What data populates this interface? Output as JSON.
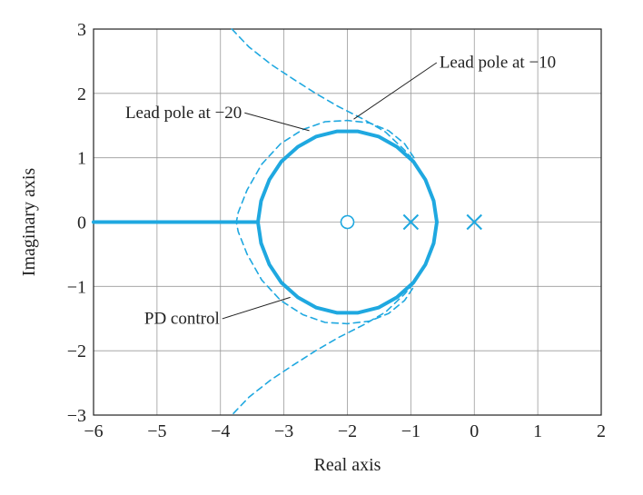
{
  "chart_data": {
    "type": "line",
    "title": "",
    "xlabel": "Real axis",
    "ylabel": "Imaginary axis",
    "xlim": [
      -6,
      2
    ],
    "ylim": [
      -3,
      3
    ],
    "xticks": [
      -6,
      -5,
      -4,
      -3,
      -2,
      -1,
      0,
      1,
      2
    ],
    "yticks": [
      -3,
      -2,
      -1,
      0,
      1,
      2,
      3
    ],
    "xtick_labels": [
      "−6",
      "−5",
      "−4",
      "−3",
      "−2",
      "−1",
      "0",
      "1",
      "2"
    ],
    "ytick_labels": [
      "−3",
      "−2",
      "−1",
      "0",
      "1",
      "2",
      "3"
    ],
    "grid": true,
    "color": "#1fa8e0",
    "series": [
      {
        "name": "PD control",
        "style": "solid",
        "paths": [
          [
            [
              -6,
              0
            ],
            [
              -3.41,
              0
            ]
          ],
          [
            [
              -0.59,
              0
            ],
            [
              -0.64,
              0.33
            ],
            [
              -0.77,
              0.66
            ],
            [
              -0.96,
              0.94
            ],
            [
              -1.22,
              1.17
            ],
            [
              -1.51,
              1.33
            ],
            [
              -1.84,
              1.41
            ],
            [
              -2.16,
              1.41
            ],
            [
              -2.49,
              1.33
            ],
            [
              -2.78,
              1.17
            ],
            [
              -3.04,
              0.94
            ],
            [
              -3.23,
              0.66
            ],
            [
              -3.36,
              0.33
            ],
            [
              -3.41,
              0
            ],
            [
              -3.36,
              -0.33
            ],
            [
              -3.23,
              -0.66
            ],
            [
              -3.04,
              -0.94
            ],
            [
              -2.78,
              -1.17
            ],
            [
              -2.49,
              -1.33
            ],
            [
              -2.16,
              -1.41
            ],
            [
              -1.84,
              -1.41
            ],
            [
              -1.51,
              -1.33
            ],
            [
              -1.22,
              -1.17
            ],
            [
              -0.96,
              -0.94
            ],
            [
              -0.77,
              -0.66
            ],
            [
              -0.64,
              -0.33
            ],
            [
              -0.59,
              0
            ]
          ]
        ]
      },
      {
        "name": "Lead pole at −20",
        "style": "dashed",
        "paths": [
          [
            [
              -0.95,
              1.0
            ],
            [
              -1.1,
              1.22
            ],
            [
              -1.35,
              1.42
            ],
            [
              -1.65,
              1.54
            ],
            [
              -2.0,
              1.58
            ],
            [
              -2.35,
              1.56
            ],
            [
              -2.7,
              1.44
            ],
            [
              -3.05,
              1.22
            ],
            [
              -3.35,
              0.9
            ],
            [
              -3.58,
              0.5
            ],
            [
              -3.72,
              0.15
            ],
            [
              -3.75,
              0
            ],
            [
              -3.72,
              -0.15
            ],
            [
              -3.58,
              -0.5
            ],
            [
              -3.35,
              -0.9
            ],
            [
              -3.05,
              -1.22
            ],
            [
              -2.7,
              -1.44
            ],
            [
              -2.35,
              -1.56
            ],
            [
              -2.0,
              -1.58
            ],
            [
              -1.65,
              -1.54
            ],
            [
              -1.35,
              -1.42
            ],
            [
              -1.1,
              -1.22
            ],
            [
              -0.95,
              -1.0
            ]
          ]
        ]
      },
      {
        "name": "Lead pole at −10",
        "style": "dashed",
        "paths": [
          [
            [
              -3.82,
              3.0
            ],
            [
              -3.55,
              2.72
            ],
            [
              -3.2,
              2.45
            ],
            [
              -2.85,
              2.22
            ],
            [
              -2.5,
              2.0
            ],
            [
              -2.15,
              1.8
            ],
            [
              -1.75,
              1.6
            ],
            [
              -1.4,
              1.4
            ],
            [
              -1.1,
              1.12
            ],
            [
              -0.95,
              0.95
            ]
          ],
          [
            [
              -0.95,
              -0.95
            ],
            [
              -1.1,
              -1.12
            ],
            [
              -1.4,
              -1.4
            ],
            [
              -1.75,
              -1.6
            ],
            [
              -2.15,
              -1.8
            ],
            [
              -2.5,
              -2.0
            ],
            [
              -2.85,
              -2.22
            ],
            [
              -3.2,
              -2.45
            ],
            [
              -3.55,
              -2.72
            ],
            [
              -3.82,
              -3.0
            ]
          ]
        ]
      }
    ],
    "poles": [
      [
        -1,
        0
      ],
      [
        0,
        0
      ]
    ],
    "zeros": [
      [
        -2,
        0
      ]
    ],
    "annotations": [
      {
        "text": "Lead pole at −10",
        "x": -0.55,
        "y": 2.4,
        "target": [
          -1.9,
          1.6
        ]
      },
      {
        "text": "Lead pole at −20",
        "x": -5.5,
        "y": 1.62,
        "target": [
          -2.6,
          1.42
        ]
      },
      {
        "text": "PD control",
        "x": -5.2,
        "y": -1.58,
        "target": [
          -2.9,
          -1.17
        ]
      }
    ]
  }
}
